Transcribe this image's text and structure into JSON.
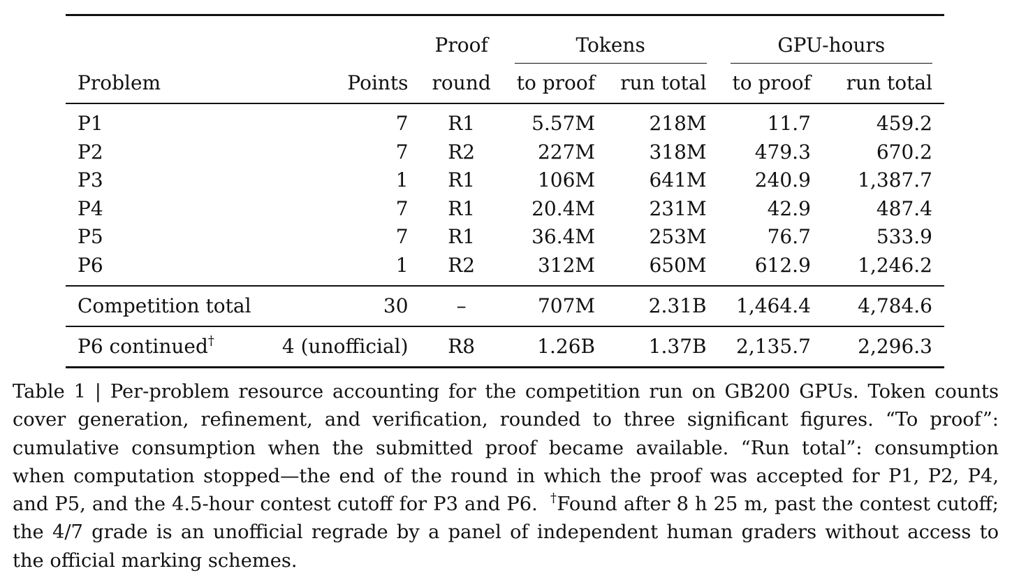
{
  "table": {
    "header": {
      "proof_top": "Proof",
      "tokens_group": "Tokens",
      "gpu_group": "GPU-hours",
      "problem": "Problem",
      "points": "Points",
      "round": "round",
      "tokens_to_proof": "to proof",
      "tokens_run_total": "run total",
      "gpu_to_proof": "to proof",
      "gpu_run_total": "run total"
    },
    "rows": [
      {
        "problem": "P1",
        "points": "7",
        "round": "R1",
        "tok_proof": "5.57M",
        "tok_total": "218M",
        "gpu_proof": "11.7",
        "gpu_total": "459.2"
      },
      {
        "problem": "P2",
        "points": "7",
        "round": "R2",
        "tok_proof": "227M",
        "tok_total": "318M",
        "gpu_proof": "479.3",
        "gpu_total": "670.2"
      },
      {
        "problem": "P3",
        "points": "1",
        "round": "R1",
        "tok_proof": "106M",
        "tok_total": "641M",
        "gpu_proof": "240.9",
        "gpu_total": "1,387.7"
      },
      {
        "problem": "P4",
        "points": "7",
        "round": "R1",
        "tok_proof": "20.4M",
        "tok_total": "231M",
        "gpu_proof": "42.9",
        "gpu_total": "487.4"
      },
      {
        "problem": "P5",
        "points": "7",
        "round": "R1",
        "tok_proof": "36.4M",
        "tok_total": "253M",
        "gpu_proof": "76.7",
        "gpu_total": "533.9"
      },
      {
        "problem": "P6",
        "points": "1",
        "round": "R2",
        "tok_proof": "312M",
        "tok_total": "650M",
        "gpu_proof": "612.9",
        "gpu_total": "1,246.2"
      }
    ],
    "total": {
      "problem": "Competition total",
      "points": "30",
      "round": "–",
      "tok_proof": "707M",
      "tok_total": "2.31B",
      "gpu_proof": "1,464.4",
      "gpu_total": "4,784.6"
    },
    "extra": {
      "problem": "P6 continued",
      "dagger": "†",
      "points": "4 (unofficial)",
      "round": "R8",
      "tok_proof": "1.26B",
      "tok_total": "1.37B",
      "gpu_proof": "2,135.7",
      "gpu_total": "2,296.3"
    }
  },
  "caption": {
    "lines": [
      "Table 1 | Per-problem resource accounting for the competition run on GB200 GPUs. Token counts",
      "cover generation, refinement, and verification, rounded to three significant figures. “To proof”:",
      "cumulative consumption when the submitted proof became available. “Run total”: consumption",
      "when computation stopped—the end of the round in which the proof was accepted for P1, P2, P4,",
      "and P5, and the 4.5-hour contest cutoff for P3 and P6.",
      "Found after 8 h 25 m, past the contest cutoff;",
      "the 4/7 grade is an unofficial regrade by a panel of independent human graders without access to",
      "the official marking schemes."
    ],
    "dagger": "†"
  }
}
